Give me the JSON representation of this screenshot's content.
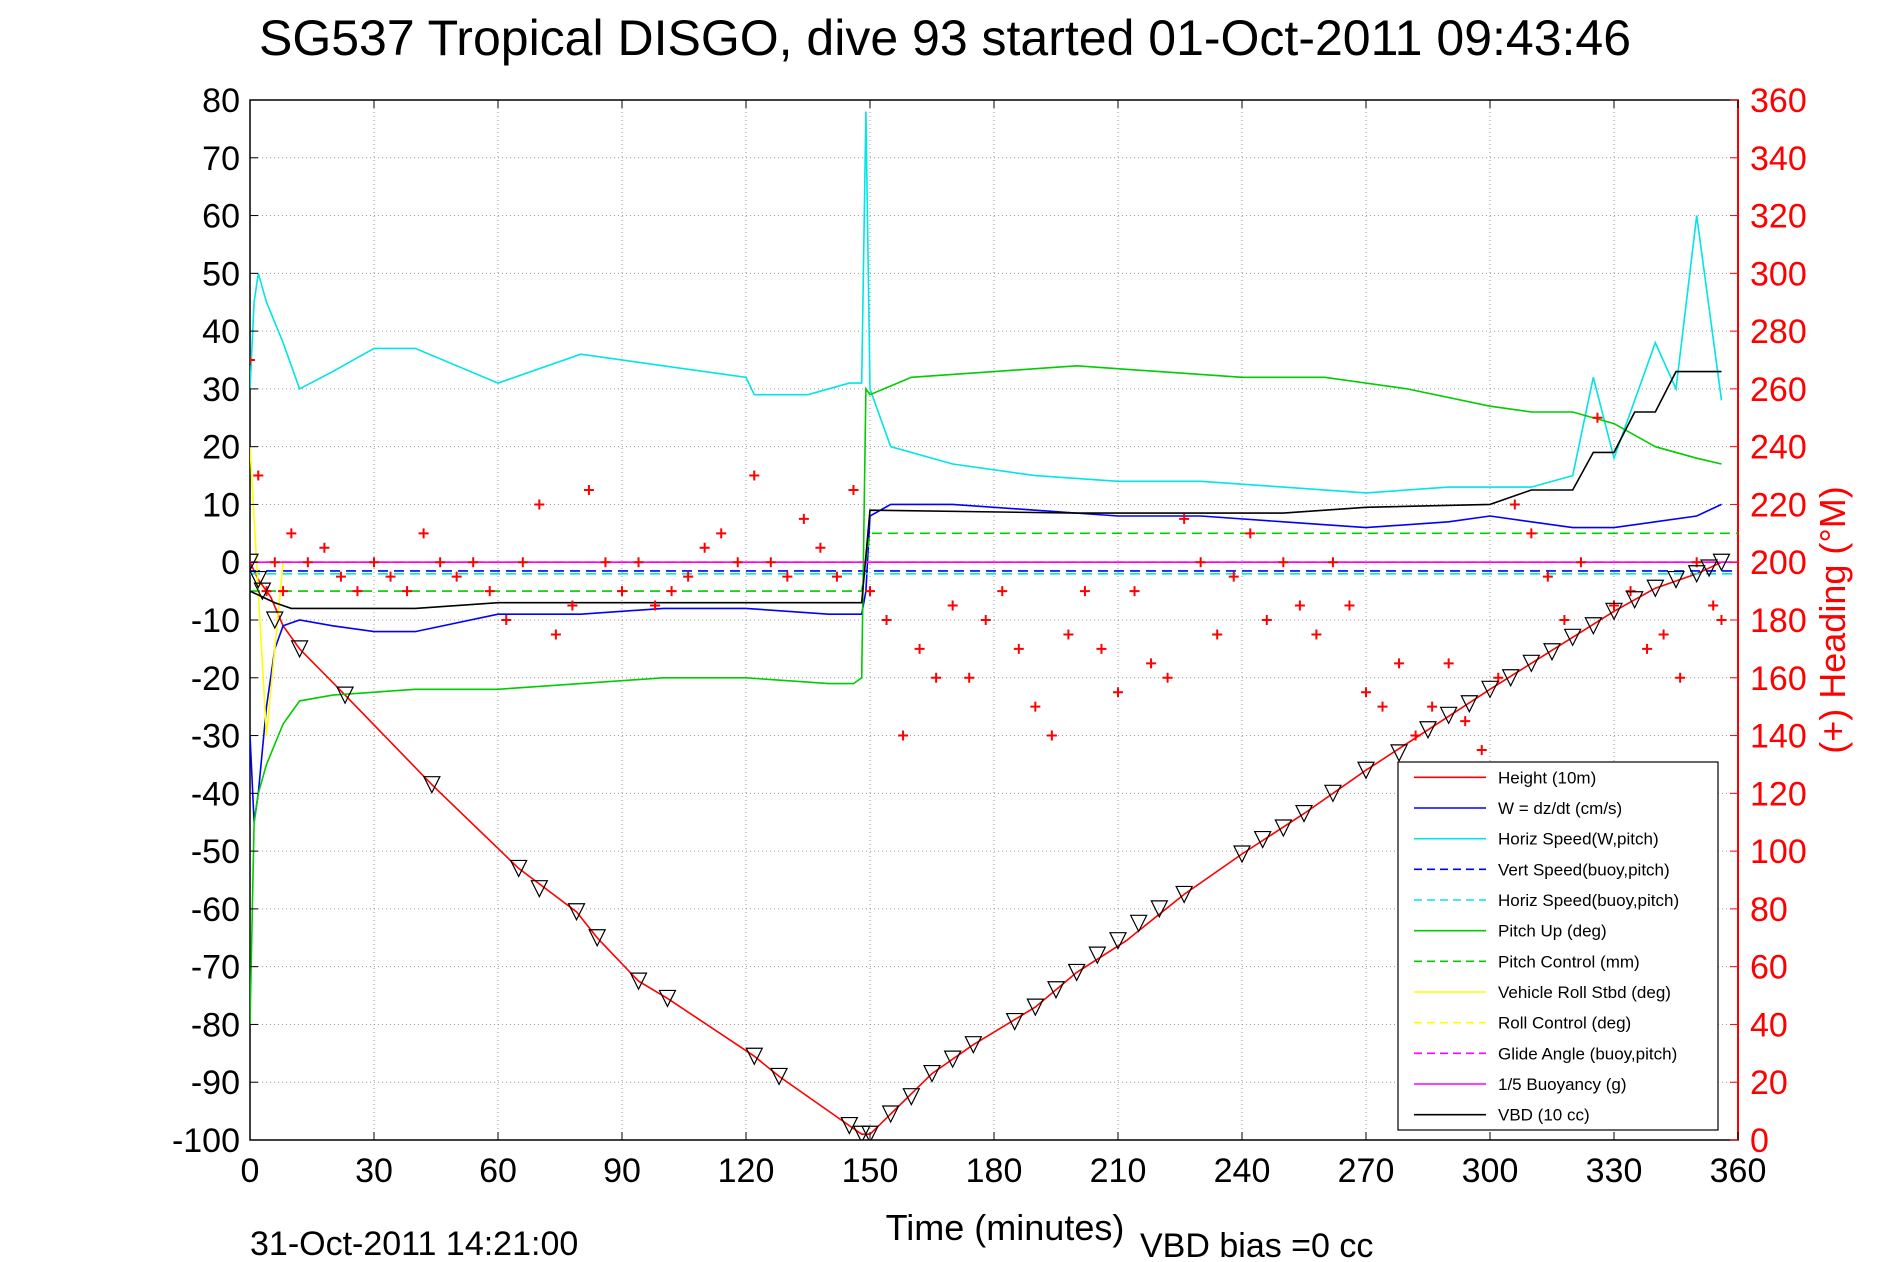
{
  "title": "SG537 Tropical DISGO, dive 93 started 01-Oct-2011 09:43:46",
  "footer": {
    "date": "31-Oct-2011 14:21:00",
    "vbd_bias": "VBD bias =0 cc"
  },
  "chart_data": {
    "type": "line",
    "title": "SG537 Tropical DISGO, dive 93 started 01-Oct-2011 09:43:46",
    "xlabel": "Time (minutes)",
    "ylabel": "",
    "y2label": "(+) Heading (°M)",
    "xlim": [
      0,
      360
    ],
    "ylim": [
      -100,
      80
    ],
    "y2lim": [
      0,
      360
    ],
    "xticks": [
      "0",
      "30",
      "60",
      "90",
      "120",
      "150",
      "180",
      "210",
      "240",
      "270",
      "300",
      "330",
      "360"
    ],
    "yticks": [
      "80",
      "70",
      "60",
      "50",
      "40",
      "30",
      "20",
      "10",
      "0",
      "-10",
      "-20",
      "-30",
      "-40",
      "-50",
      "-60",
      "-70",
      "-80",
      "-90",
      "-100"
    ],
    "y2ticks": [
      "360",
      "340",
      "320",
      "300",
      "280",
      "260",
      "240",
      "220",
      "200",
      "180",
      "160",
      "140",
      "120",
      "100",
      "80",
      "60",
      "40",
      "20",
      "0"
    ],
    "grid": true,
    "legend_position": "bottom-right",
    "series": [
      {
        "name": "Height (10m)",
        "color": "#ff0000",
        "style": "solid",
        "x": [
          0,
          2,
          5,
          8,
          12,
          23,
          44,
          65,
          79,
          84,
          94,
          101,
          122,
          128,
          145,
          148,
          150,
          155,
          165,
          175,
          190,
          200,
          212,
          226,
          240,
          255,
          270,
          285,
          300,
          310,
          320,
          330,
          340,
          350,
          356
        ],
        "y": [
          0,
          -3,
          -6,
          -11,
          -15,
          -23,
          -38.5,
          -53,
          -60.5,
          -65,
          -72.5,
          -75.5,
          -85.5,
          -89,
          -97.5,
          -99,
          -99,
          -95.5,
          -88.5,
          -83.5,
          -77,
          -71,
          -65.5,
          -57.5,
          -50.5,
          -43.5,
          -36,
          -29,
          -22,
          -17.5,
          -13,
          -8.5,
          -4.5,
          -2,
          0
        ]
      },
      {
        "name": "W = dz/dt (cm/s)",
        "color": "#0000ff",
        "style": "solid",
        "x": [
          0,
          1,
          2,
          4,
          6,
          8,
          12,
          20,
          30,
          40,
          60,
          80,
          100,
          120,
          140,
          148,
          149,
          150,
          155,
          170,
          190,
          210,
          230,
          250,
          270,
          290,
          300,
          310,
          320,
          330,
          340,
          350,
          356
        ],
        "y": [
          -30,
          -45,
          -40,
          -25,
          -15,
          -11,
          -10,
          -11,
          -12,
          -12,
          -9,
          -9,
          -8,
          -8,
          -9,
          -9,
          -5,
          8,
          10,
          10,
          9,
          8,
          8,
          7,
          6,
          7,
          8,
          7,
          6,
          6,
          7,
          8,
          10
        ]
      },
      {
        "name": "Horiz Speed(W,pitch)",
        "color": "#00e5e5",
        "style": "solid",
        "x": [
          0,
          1,
          2,
          4,
          8,
          12,
          20,
          30,
          40,
          60,
          80,
          100,
          120,
          122,
          135,
          145,
          148,
          149,
          150,
          155,
          170,
          190,
          210,
          230,
          250,
          270,
          290,
          310,
          320,
          325,
          330,
          340,
          345,
          350,
          356
        ],
        "y": [
          30,
          45,
          50,
          45,
          38,
          30,
          33,
          37,
          37,
          31,
          36,
          34,
          32,
          29,
          29,
          31,
          31,
          78,
          30,
          20,
          17,
          15,
          14,
          14,
          13,
          12,
          13,
          13,
          15,
          32,
          18,
          38,
          30,
          60,
          28
        ]
      },
      {
        "name": "Vert Speed(buoy,pitch)",
        "color": "#0000ff",
        "style": "dashed",
        "x": [
          0,
          360
        ],
        "y": [
          -1.5,
          -1.5
        ]
      },
      {
        "name": "Horiz Speed(buoy,pitch)",
        "color": "#00e5e5",
        "style": "dashed",
        "x": [
          0,
          360
        ],
        "y": [
          -2,
          -2
        ]
      },
      {
        "name": "Pitch Up (deg)",
        "color": "#00cc00",
        "style": "solid",
        "x": [
          0,
          1,
          2,
          4,
          8,
          12,
          20,
          40,
          60,
          80,
          100,
          120,
          140,
          146,
          148,
          149,
          150,
          160,
          180,
          200,
          220,
          240,
          260,
          280,
          300,
          310,
          320,
          330,
          340,
          350,
          356
        ],
        "y": [
          -80,
          -45,
          -40,
          -35,
          -28,
          -24,
          -23,
          -22,
          -22,
          -21,
          -20,
          -20,
          -21,
          -21,
          -20,
          30,
          29,
          32,
          33,
          34,
          33,
          32,
          32,
          30,
          27,
          26,
          26,
          24,
          20,
          18,
          17
        ]
      },
      {
        "name": "Pitch Control (mm)",
        "color": "#00cc00",
        "style": "dashed",
        "x": [
          0,
          148,
          150,
          360
        ],
        "y": [
          -5,
          -5,
          5,
          5
        ]
      },
      {
        "name": "Vehicle Roll Stbd (deg)",
        "color": "#ffff00",
        "style": "solid",
        "x": [
          0,
          4,
          8,
          20,
          60,
          80,
          100,
          120,
          140,
          148,
          150,
          200,
          250,
          300,
          330,
          356
        ],
        "y": [
          20,
          -30,
          0,
          0,
          0,
          0,
          0,
          0,
          0,
          0,
          0,
          0,
          0,
          0,
          0,
          0
        ]
      },
      {
        "name": "Roll Control (deg)",
        "color": "#ffff00",
        "style": "dashed",
        "x": [
          0,
          360
        ],
        "y": [
          0,
          0
        ]
      },
      {
        "name": "Glide Angle (buoy,pitch)",
        "color": "#ff00ff",
        "style": "dashed",
        "x": [
          0,
          360
        ],
        "y": [
          0,
          0
        ]
      },
      {
        "name": "1/5 Buoyancy (g)",
        "color": "#ff00ff",
        "style": "solid",
        "x": [
          0,
          360
        ],
        "y": [
          0,
          0
        ]
      },
      {
        "name": "VBD (10 cc)",
        "color": "#000000",
        "style": "solid",
        "x": [
          0,
          3,
          6,
          10,
          40,
          60,
          100,
          148,
          150,
          200,
          250,
          270,
          300,
          310,
          320,
          325,
          330,
          335,
          340,
          345,
          356
        ],
        "y": [
          -5,
          -6,
          -7,
          -8,
          -8,
          -7,
          -7,
          -7,
          9,
          8.5,
          8.5,
          9.5,
          10,
          12.5,
          12.5,
          19,
          19,
          26,
          26,
          33,
          33
        ]
      }
    ],
    "heading_scatter": {
      "name": "(+) Heading",
      "color": "#ff0000",
      "marker": "+",
      "axis": "right",
      "x": [
        0,
        2,
        4,
        6,
        8,
        10,
        14,
        18,
        22,
        26,
        30,
        34,
        38,
        42,
        46,
        50,
        54,
        58,
        62,
        66,
        70,
        74,
        78,
        82,
        86,
        90,
        94,
        98,
        102,
        106,
        110,
        114,
        118,
        122,
        126,
        130,
        134,
        138,
        142,
        146,
        150,
        154,
        158,
        162,
        166,
        170,
        174,
        178,
        182,
        186,
        190,
        194,
        198,
        202,
        206,
        210,
        214,
        218,
        222,
        226,
        230,
        234,
        238,
        242,
        246,
        250,
        254,
        258,
        262,
        266,
        270,
        274,
        278,
        282,
        286,
        290,
        294,
        298,
        302,
        306,
        310,
        314,
        318,
        322,
        326,
        330,
        334,
        338,
        342,
        346,
        350,
        354,
        356
      ],
      "y": [
        270,
        230,
        190,
        200,
        190,
        210,
        200,
        205,
        195,
        190,
        200,
        195,
        190,
        210,
        200,
        195,
        200,
        190,
        180,
        200,
        220,
        175,
        185,
        225,
        200,
        190,
        200,
        185,
        190,
        195,
        205,
        210,
        200,
        230,
        200,
        195,
        215,
        205,
        195,
        225,
        190,
        180,
        140,
        170,
        160,
        185,
        160,
        180,
        190,
        170,
        150,
        140,
        175,
        190,
        170,
        155,
        190,
        165,
        160,
        215,
        200,
        175,
        195,
        210,
        180,
        200,
        185,
        175,
        200,
        185,
        155,
        150,
        165,
        140,
        150,
        165,
        145,
        135,
        160,
        220,
        210,
        195,
        180,
        200,
        250,
        185,
        190,
        170,
        175,
        160,
        200,
        185,
        180
      ]
    },
    "markers": {
      "name": "triangle markers on Height",
      "color": "#000000",
      "x": [
        0,
        2,
        3,
        6,
        12,
        23,
        44,
        65,
        70,
        79,
        84,
        94,
        101,
        122,
        128,
        145,
        148,
        150,
        155,
        160,
        165,
        170,
        175,
        185,
        190,
        195,
        200,
        205,
        210,
        215,
        220,
        226,
        240,
        245,
        250,
        255,
        262,
        270,
        278,
        285,
        290,
        295,
        300,
        305,
        310,
        315,
        320,
        325,
        330,
        335,
        340,
        345,
        350,
        353,
        356
      ],
      "y": [
        0,
        -3,
        -5,
        -10,
        -15,
        -23,
        -38.5,
        -53,
        -56.5,
        -60.5,
        -65,
        -72.5,
        -75.5,
        -85.5,
        -89,
        -97.5,
        -99,
        -99,
        -95.5,
        -92.5,
        -88.5,
        -86,
        -83.5,
        -79.5,
        -77,
        -74,
        -71,
        -68,
        -65.5,
        -62.5,
        -60,
        -57.5,
        -50.5,
        -48,
        -46,
        -43.5,
        -40,
        -36,
        -33,
        -29,
        -26.5,
        -24.5,
        -22,
        -20,
        -17.5,
        -15.5,
        -13,
        -11,
        -8.5,
        -6.5,
        -4.5,
        -3,
        -2,
        -1,
        0
      ]
    }
  }
}
